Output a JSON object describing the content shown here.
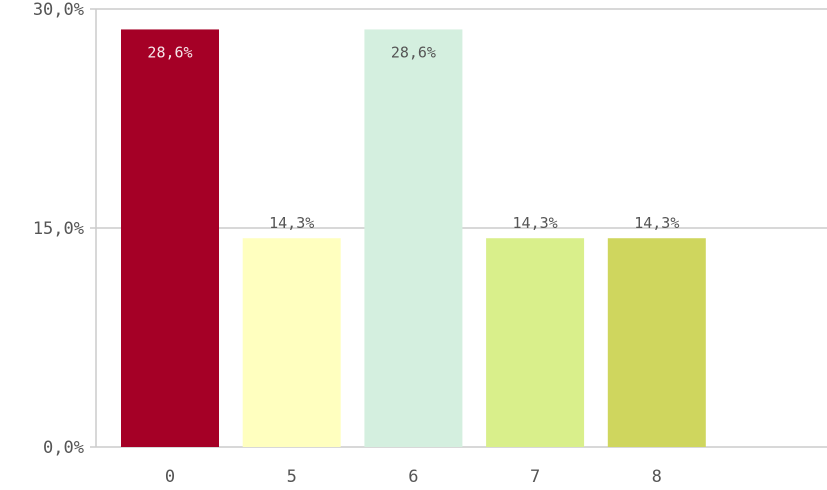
{
  "chart_data": {
    "type": "bar",
    "categories": [
      "0",
      "5",
      "6",
      "7",
      "8"
    ],
    "values": [
      28.6,
      14.3,
      28.6,
      14.3,
      14.3
    ],
    "data_labels": [
      "28,6%",
      "14,3%",
      "28,6%",
      "14,3%",
      "14,3%"
    ],
    "bar_colors": [
      "#a50026",
      "#ffffbf",
      "#d4efdf",
      "#d9ef8b",
      "#cfd65e"
    ],
    "label_inside_colors": [
      "#f6e6ea",
      "#555555",
      "#555555",
      "#555555",
      "#555555"
    ],
    "label_inside": [
      true,
      false,
      true,
      false,
      false
    ],
    "ylim": [
      0,
      30
    ],
    "yticks": [
      0,
      15,
      30
    ],
    "ytick_labels": [
      "0,0%",
      "15,0%",
      "30,0%"
    ],
    "grid": true,
    "title": "",
    "xlabel": "",
    "ylabel": ""
  }
}
